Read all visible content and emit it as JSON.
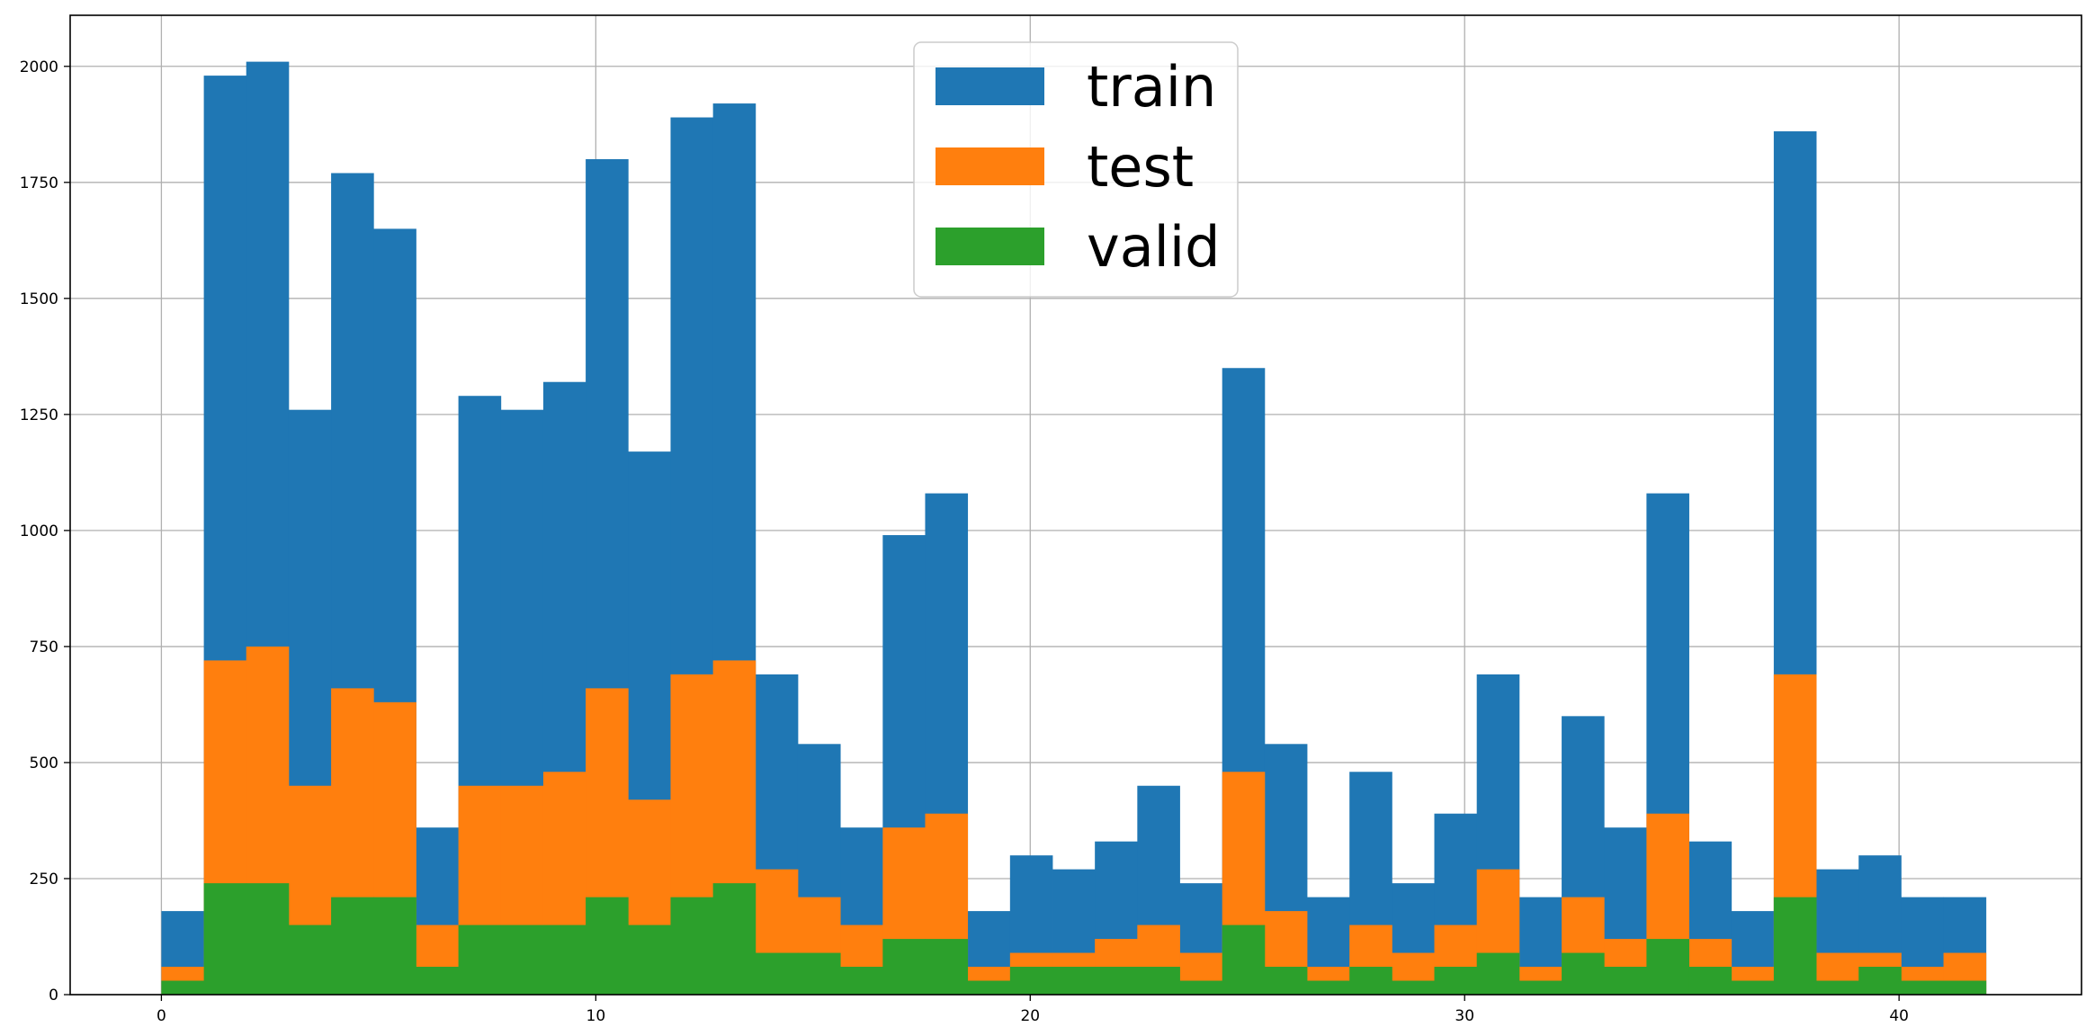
{
  "chart_data": {
    "type": "bar",
    "subtype": "histogram",
    "title": "",
    "xlabel": "",
    "ylabel": "",
    "xlim": [
      -2.1,
      44.2
    ],
    "ylim": [
      0,
      2110
    ],
    "x_ticks": [
      0,
      10,
      20,
      30,
      40
    ],
    "y_ticks": [
      0,
      250,
      500,
      750,
      1000,
      1250,
      1500,
      1750,
      2000
    ],
    "grid": true,
    "legend_position": "top-center",
    "bin_width": 0.977,
    "bin_starts": [
      0,
      0.977,
      1.953,
      2.93,
      3.907,
      4.884,
      5.86,
      6.837,
      7.814,
      8.791,
      9.767,
      10.744,
      11.721,
      12.698,
      13.674,
      14.651,
      15.628,
      16.605,
      17.581,
      18.558,
      19.535,
      20.512,
      21.488,
      22.465,
      23.442,
      24.419,
      25.395,
      26.372,
      27.349,
      28.326,
      29.302,
      30.279,
      31.256,
      32.233,
      33.209,
      34.186,
      35.163,
      36.14,
      37.116,
      38.093,
      39.07,
      40.047,
      41.023
    ],
    "series": [
      {
        "name": "train",
        "color": "#1f77b4",
        "values": [
          180,
          1980,
          2010,
          1260,
          1770,
          1650,
          360,
          1290,
          1260,
          1320,
          1800,
          1170,
          1890,
          1920,
          690,
          540,
          360,
          990,
          1080,
          180,
          300,
          270,
          330,
          450,
          240,
          1350,
          540,
          210,
          480,
          240,
          390,
          690,
          210,
          600,
          360,
          1080,
          330,
          180,
          1860,
          270,
          300,
          210,
          210
        ]
      },
      {
        "name": "test",
        "color": "#ff7f0e",
        "values": [
          60,
          720,
          750,
          450,
          660,
          630,
          150,
          450,
          450,
          480,
          660,
          420,
          690,
          720,
          270,
          210,
          150,
          360,
          390,
          60,
          90,
          90,
          120,
          150,
          90,
          480,
          180,
          60,
          150,
          90,
          150,
          270,
          60,
          210,
          120,
          390,
          120,
          60,
          690,
          90,
          90,
          60,
          90
        ]
      },
      {
        "name": "valid",
        "color": "#2ca02c",
        "values": [
          30,
          240,
          240,
          150,
          210,
          210,
          60,
          150,
          150,
          150,
          210,
          150,
          210,
          240,
          90,
          90,
          60,
          120,
          120,
          30,
          60,
          60,
          60,
          60,
          30,
          150,
          60,
          30,
          60,
          30,
          60,
          90,
          30,
          90,
          60,
          120,
          60,
          30,
          210,
          30,
          60,
          30,
          30
        ]
      }
    ]
  }
}
